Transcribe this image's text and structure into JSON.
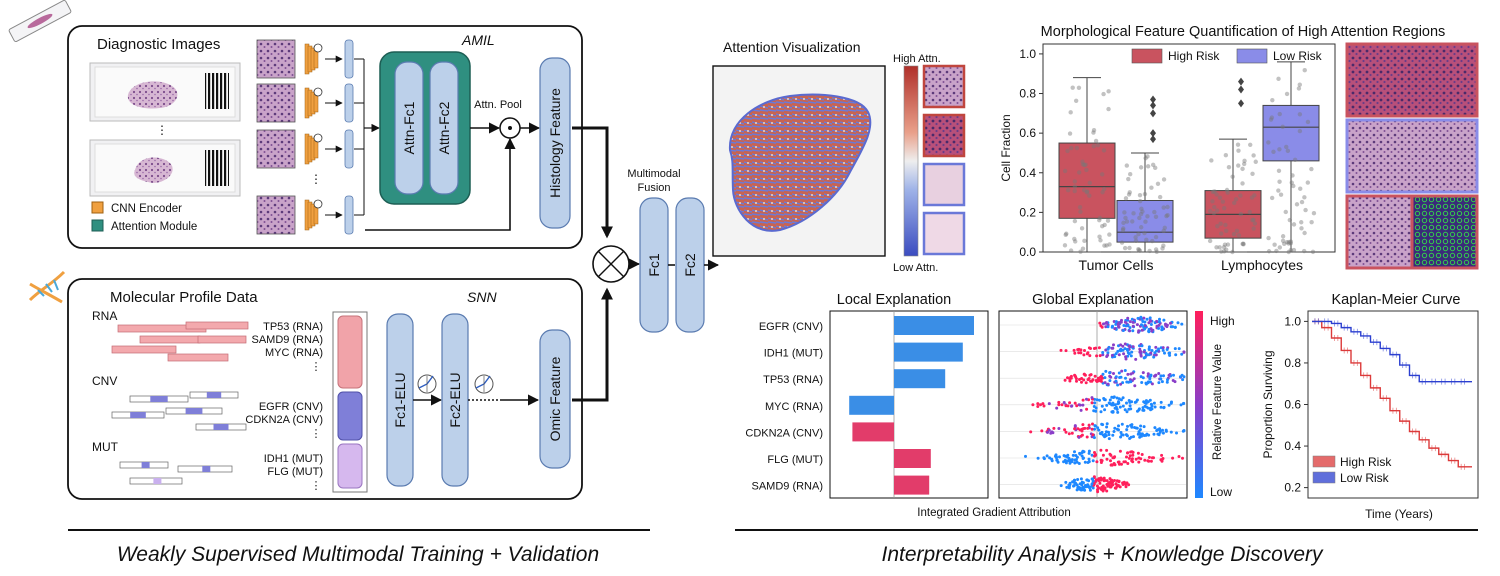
{
  "left_panel": {
    "diagnostic_images_title": "Diagnostic Images",
    "amil_label": "AMIL",
    "legend_cnn": "CNN Encoder",
    "legend_attention": "Attention Module",
    "attn_fc1": "Attn-Fc1",
    "attn_fc2": "Attn-Fc2",
    "attn_pool": "Attn. Pool",
    "histology_feature": "Histology Feature",
    "molecular_title": "Molecular Profile Data",
    "snn_label": "SNN",
    "rna_header": "RNA",
    "cnv_header": "CNV",
    "mut_header": "MUT",
    "rna_genes": [
      "TP53 (RNA)",
      "SAMD9 (RNA)",
      "MYC (RNA)"
    ],
    "cnv_genes": [
      "EGFR (CNV)",
      "CDKN2A (CNV)"
    ],
    "mut_genes": [
      "IDH1 (MUT)",
      "FLG (MUT)"
    ],
    "fc1_elu": "Fc1-ELU",
    "fc2_elu": "Fc2-ELU",
    "omic_feature": "Omic Feature",
    "ellipsis": "⋮",
    "caption": "Weakly Supervised Multimodal Training + Validation"
  },
  "fusion": {
    "title_line1": "Multimodal",
    "title_line2": "Fusion",
    "fc1": "Fc1",
    "fc2": "Fc2"
  },
  "right_panel": {
    "attention_title": "Attention Visualization",
    "high_attn": "High Attn.",
    "low_attn": "Low Attn.",
    "morph_title": "Morphological Feature Quantification of High Attention Regions",
    "local_title": "Local Explanation",
    "global_title": "Global Explanation",
    "km_title": "Kaplan-Meier Curve",
    "ig_xlabel": "Integrated Gradient Attribution",
    "colorbar_high": "High",
    "colorbar_low": "Low",
    "colorbar_label": "Relative Feature Value",
    "caption": "Interpretability Analysis + Knowledge Discovery"
  },
  "chart_data": [
    {
      "type": "box",
      "title": "Morphological Feature Quantification of High Attention Regions",
      "ylabel": "Cell Fraction",
      "ylim": [
        0,
        1.05
      ],
      "yticks": [
        "0.0",
        "0.2",
        "0.4",
        "0.6",
        "0.8",
        "1.0"
      ],
      "categories": [
        "Tumor Cells",
        "Lymphocytes"
      ],
      "legend": [
        "High Risk",
        "Low Risk"
      ],
      "colors": {
        "High Risk": "#c9535f",
        "Low Risk": "#8a8ce8"
      },
      "boxes": [
        {
          "category": "Tumor Cells",
          "series": "High Risk",
          "min": 0.0,
          "q1": 0.17,
          "median": 0.33,
          "q3": 0.55,
          "max": 0.88
        },
        {
          "category": "Tumor Cells",
          "series": "Low Risk",
          "min": 0.0,
          "q1": 0.05,
          "median": 0.1,
          "q3": 0.26,
          "max": 0.5,
          "outliers": [
            0.57,
            0.6,
            0.7,
            0.74,
            0.77
          ]
        },
        {
          "category": "Lymphocytes",
          "series": "High Risk",
          "min": 0.0,
          "q1": 0.07,
          "median": 0.19,
          "q3": 0.31,
          "max": 0.57,
          "outliers": [
            0.75,
            0.82,
            0.86
          ]
        },
        {
          "category": "Lymphocytes",
          "series": "Low Risk",
          "min": 0.0,
          "q1": 0.46,
          "median": 0.63,
          "q3": 0.74,
          "max": 0.96
        }
      ]
    },
    {
      "type": "bar",
      "title": "Local Explanation",
      "xlabel": "Integrated Gradient Attribution",
      "categories": [
        "EGFR (CNV)",
        "IDH1 (MUT)",
        "TP53 (RNA)",
        "MYC (RNA)",
        "CDKN2A (CNV)",
        "FLG (MUT)",
        "SAMD9 (RNA)"
      ],
      "values": [
        1.0,
        0.86,
        0.64,
        -0.56,
        -0.52,
        0.46,
        0.44
      ],
      "colors": [
        "#3a8ee6",
        "#3a8ee6",
        "#3a8ee6",
        "#3a8ee6",
        "#e23c6a",
        "#e23c6a",
        "#e23c6a"
      ]
    },
    {
      "type": "scatter",
      "title": "Global Explanation",
      "categories": [
        "EGFR (CNV)",
        "IDH1 (MUT)",
        "TP53 (RNA)",
        "MYC (RNA)",
        "CDKN2A (CNV)",
        "FLG (MUT)",
        "SAMD9 (RNA)"
      ],
      "colorbar": {
        "label": "Relative Feature Value",
        "high": "High",
        "low": "Low"
      }
    },
    {
      "type": "line",
      "title": "Kaplan-Meier Curve",
      "xlabel": "Time (Years)",
      "ylabel": "Proportion Surviving",
      "yticks": [
        "0.2",
        "0.4",
        "0.6",
        "0.8",
        "1.0"
      ],
      "ylim": [
        0.15,
        1.05
      ],
      "series": [
        {
          "name": "High Risk",
          "color": "#dc3a3a",
          "values": [
            1.0,
            0.97,
            0.92,
            0.86,
            0.8,
            0.74,
            0.68,
            0.63,
            0.57,
            0.52,
            0.47,
            0.43,
            0.39,
            0.36,
            0.33,
            0.3,
            0.3
          ]
        },
        {
          "name": "Low Risk",
          "color": "#2b3fd0",
          "values": [
            1.0,
            1.0,
            0.99,
            0.97,
            0.95,
            0.93,
            0.9,
            0.87,
            0.84,
            0.79,
            0.74,
            0.71,
            0.71,
            0.71,
            0.71,
            0.71,
            0.71
          ]
        }
      ]
    }
  ]
}
